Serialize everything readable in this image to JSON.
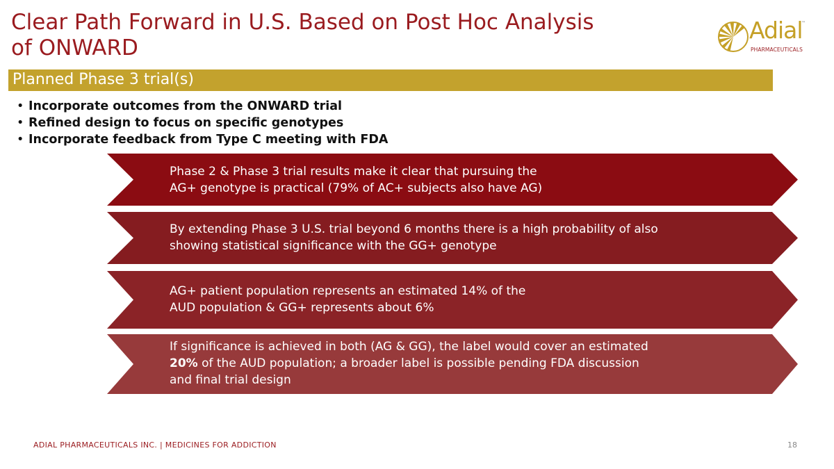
{
  "slide": {
    "title_line1": "Clear Path Forward in U.S. Based on Post Hoc Analysis",
    "title_line2": "of ONWARD",
    "section_heading": "Planned Phase 3 trial(s)"
  },
  "logo": {
    "wordmark": "Adial",
    "trademark": "™",
    "subtitle": "PHARMACEUTICALS",
    "icon": "sunburst-logo-icon"
  },
  "bullets": [
    "Incorporate outcomes from the ONWARD trial",
    "Refined design to focus on specific genotypes",
    "Incorporate feedback from Type C meeting with FDA"
  ],
  "chevrons": [
    {
      "line1": "Phase 2 & Phase 3 trial results make it clear that pursuing the",
      "line2": "AG+ genotype is practical (79% of AC+ subjects also have AG)"
    },
    {
      "line1": "By extending Phase 3 U.S. trial beyond 6 months there is a high probability of also",
      "line2": "showing statistical significance with the GG+ genotype"
    },
    {
      "line1": "AG+ patient population represents an estimated 14% of the",
      "line2": "AUD population & GG+ represents about 6%"
    },
    {
      "line1": "If significance is achieved in both (AG & GG), the label would cover an estimated",
      "line2_bold": "20%",
      "line2_rest": " of the AUD population; a broader label is possible pending FDA discussion",
      "line3": "and final trial design"
    }
  ],
  "footer": {
    "text": "ADIAL PHARMACEUTICALS INC.  |  MEDICINES FOR ADDICTION",
    "page_number": "18"
  },
  "colors": {
    "title_red": "#9a1b1f",
    "gold": "#c3a22d",
    "chevron_1": "#8b0c12",
    "chevron_2": "#851c20",
    "chevron_3": "#8b2327",
    "chevron_4": "#973a3b"
  }
}
